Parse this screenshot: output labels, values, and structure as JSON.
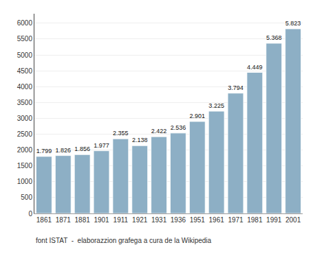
{
  "chart_data": {
    "type": "bar",
    "categories": [
      "1861",
      "1871",
      "1881",
      "1901",
      "1911",
      "1921",
      "1931",
      "1936",
      "1951",
      "1961",
      "1971",
      "1981",
      "1991",
      "2001"
    ],
    "values": [
      1799,
      1826,
      1856,
      1977,
      2355,
      2138,
      2422,
      2536,
      2901,
      3225,
      3794,
      4449,
      5368,
      5823
    ],
    "value_labels": [
      "1.799",
      "1.826",
      "1.856",
      "1.977",
      "2.355",
      "2.138",
      "2.422",
      "2.536",
      "2.901",
      "3.225",
      "3.794",
      "4.449",
      "5.368",
      "5.823"
    ],
    "data_labels": true,
    "color": "#8DAFC5",
    "ylim": [
      0,
      6300
    ],
    "yticks": [
      0,
      500,
      1000,
      1500,
      2000,
      2500,
      3000,
      3500,
      4000,
      4500,
      5000,
      5500,
      6000
    ],
    "grid": true,
    "caption": "font ISTAT  -  elaborazzion grafega a cura de la Wikipedia"
  }
}
